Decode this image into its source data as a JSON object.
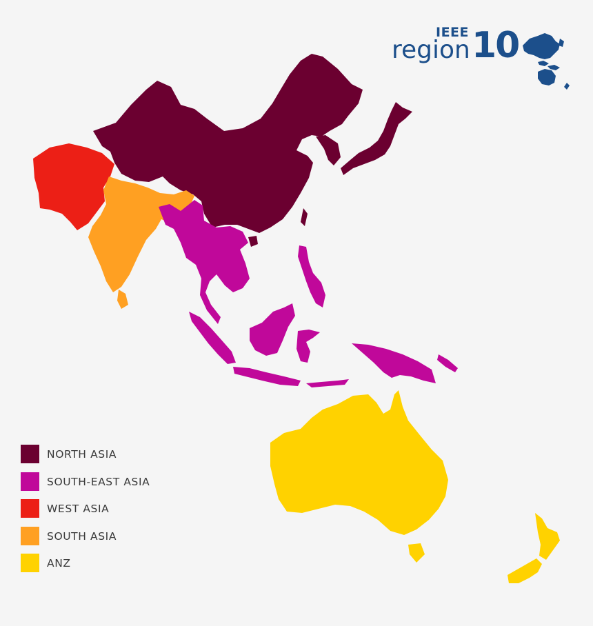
{
  "logo": {
    "org": "IEEE",
    "word": "region",
    "number": "10",
    "color": "#1c4f8b"
  },
  "regions": [
    {
      "key": "north_asia",
      "label": "NORTH ASIA",
      "color": "#6b0030"
    },
    {
      "key": "south_east_asia",
      "label": "SOUTH-EAST ASIA",
      "color": "#c0089a"
    },
    {
      "key": "west_asia",
      "label": "WEST ASIA",
      "color": "#ec1f16"
    },
    {
      "key": "south_asia",
      "label": "SOUTH ASIA",
      "color": "#ffa022"
    },
    {
      "key": "anz",
      "label": "ANZ",
      "color": "#ffd200"
    }
  ],
  "background": "#f5f5f5"
}
